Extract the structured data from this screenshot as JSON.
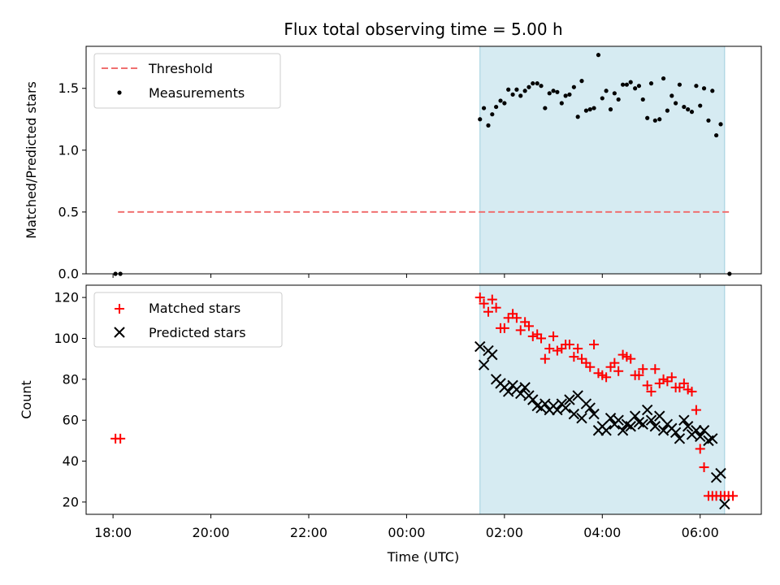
{
  "chart_data": [
    {
      "type": "scatter",
      "panel": "top",
      "title": "Flux total observing time = 5.00 h",
      "xlabel": "",
      "ylabel": "Matched/Predicted stars",
      "xlim": [
        -0.55,
        13.25
      ],
      "ylim": [
        0,
        1.84
      ],
      "yticks": [
        0.0,
        0.5,
        1.0,
        1.5
      ],
      "ytick_labels": [
        "0.0",
        "0.5",
        "1.0",
        "1.5"
      ],
      "shaded_region": {
        "x0": 7.5,
        "x1": 12.5,
        "color": "#add8e6",
        "opacity": 0.5
      },
      "legend": {
        "position": "upper-left",
        "entries": [
          "Threshold",
          "Measurements"
        ]
      },
      "series": [
        {
          "name": "Threshold",
          "kind": "dashed-line",
          "color": "#f07070",
          "x": [
            0.1,
            12.6
          ],
          "y": [
            0.5,
            0.5
          ]
        },
        {
          "name": "Measurements",
          "kind": "dot",
          "color": "#000000",
          "x": [
            0.05,
            0.15,
            7.5,
            7.58,
            7.67,
            7.75,
            7.83,
            7.92,
            8.0,
            8.08,
            8.17,
            8.25,
            8.33,
            8.42,
            8.5,
            8.58,
            8.67,
            8.75,
            8.83,
            8.92,
            9.0,
            9.08,
            9.17,
            9.25,
            9.33,
            9.42,
            9.5,
            9.58,
            9.67,
            9.75,
            9.83,
            9.92,
            10.0,
            10.08,
            10.17,
            10.25,
            10.33,
            10.42,
            10.5,
            10.58,
            10.67,
            10.75,
            10.83,
            10.92,
            11.0,
            11.08,
            11.17,
            11.25,
            11.33,
            11.42,
            11.5,
            11.58,
            11.67,
            11.75,
            11.83,
            11.92,
            12.0,
            12.08,
            12.17,
            12.25,
            12.33,
            12.42,
            12.6
          ],
          "y": [
            0.0,
            0.0,
            1.25,
            1.34,
            1.2,
            1.29,
            1.35,
            1.4,
            1.38,
            1.49,
            1.45,
            1.49,
            1.44,
            1.48,
            1.51,
            1.54,
            1.54,
            1.52,
            1.34,
            1.46,
            1.48,
            1.47,
            1.38,
            1.44,
            1.45,
            1.51,
            1.27,
            1.56,
            1.32,
            1.33,
            1.34,
            1.77,
            1.42,
            1.48,
            1.33,
            1.46,
            1.41,
            1.53,
            1.53,
            1.55,
            1.5,
            1.52,
            1.41,
            1.26,
            1.54,
            1.24,
            1.25,
            1.58,
            1.32,
            1.44,
            1.38,
            1.53,
            1.35,
            1.33,
            1.31,
            1.52,
            1.36,
            1.5,
            1.24,
            1.48,
            1.12,
            1.21,
            0.0
          ]
        }
      ]
    },
    {
      "type": "scatter",
      "panel": "bottom",
      "title": "",
      "xlabel": "Time (UTC)",
      "ylabel": "Count",
      "xlim": [
        -0.55,
        13.25
      ],
      "ylim": [
        14,
        126
      ],
      "yticks": [
        20,
        40,
        60,
        80,
        100,
        120
      ],
      "ytick_labels": [
        "20",
        "40",
        "60",
        "80",
        "100",
        "120"
      ],
      "xticks": [
        0,
        2,
        4,
        6,
        8,
        10,
        12
      ],
      "xtick_labels": [
        "18:00",
        "20:00",
        "22:00",
        "00:00",
        "02:00",
        "04:00",
        "06:00"
      ],
      "shaded_region": {
        "x0": 7.5,
        "x1": 12.5,
        "color": "#add8e6",
        "opacity": 0.5
      },
      "legend": {
        "position": "upper-left",
        "entries": [
          "Matched stars",
          "Predicted stars"
        ]
      },
      "series": [
        {
          "name": "Matched stars",
          "kind": "plus",
          "color": "#ff0000",
          "x": [
            0.05,
            0.15,
            7.5,
            7.58,
            7.67,
            7.75,
            7.83,
            7.92,
            8.0,
            8.08,
            8.17,
            8.25,
            8.33,
            8.42,
            8.5,
            8.58,
            8.67,
            8.75,
            8.83,
            8.92,
            9.0,
            9.08,
            9.17,
            9.25,
            9.33,
            9.42,
            9.5,
            9.58,
            9.67,
            9.75,
            9.83,
            9.92,
            10.0,
            10.08,
            10.17,
            10.25,
            10.33,
            10.42,
            10.5,
            10.58,
            10.67,
            10.75,
            10.83,
            10.92,
            11.0,
            11.08,
            11.17,
            11.25,
            11.33,
            11.42,
            11.5,
            11.58,
            11.67,
            11.75,
            11.83,
            11.92,
            12.0,
            12.08,
            12.17,
            12.25,
            12.33,
            12.42,
            12.5,
            12.58,
            12.67
          ],
          "y": [
            51,
            51,
            120,
            117,
            113,
            119,
            115,
            105,
            105,
            110,
            112,
            110,
            104,
            108,
            106,
            101,
            102,
            100,
            90,
            95,
            101,
            94,
            95,
            97,
            97,
            91,
            95,
            90,
            88,
            86,
            97,
            83,
            82,
            81,
            86,
            88,
            84,
            92,
            91,
            90,
            82,
            82,
            85,
            77,
            74,
            85,
            78,
            80,
            79,
            81,
            76,
            76,
            78,
            75,
            74,
            65,
            46,
            37,
            23,
            23,
            23,
            23,
            23,
            23,
            23
          ]
        },
        {
          "name": "Predicted stars",
          "kind": "x",
          "color": "#000000",
          "x": [
            7.5,
            7.58,
            7.67,
            7.75,
            7.83,
            7.92,
            8.0,
            8.08,
            8.17,
            8.25,
            8.33,
            8.42,
            8.5,
            8.58,
            8.67,
            8.75,
            8.83,
            8.92,
            9.0,
            9.08,
            9.17,
            9.25,
            9.33,
            9.42,
            9.5,
            9.58,
            9.67,
            9.75,
            9.83,
            9.92,
            10.0,
            10.08,
            10.17,
            10.25,
            10.33,
            10.42,
            10.5,
            10.58,
            10.67,
            10.75,
            10.83,
            10.92,
            11.0,
            11.08,
            11.17,
            11.25,
            11.33,
            11.42,
            11.5,
            11.58,
            11.67,
            11.75,
            11.83,
            11.92,
            12.0,
            12.08,
            12.17,
            12.25,
            12.33,
            12.42,
            12.5
          ],
          "y": [
            96,
            87,
            94,
            92,
            80,
            78,
            76,
            74,
            77,
            75,
            73,
            76,
            72,
            70,
            67,
            66,
            68,
            65,
            67,
            65,
            68,
            66,
            70,
            63,
            72,
            61,
            68,
            66,
            63,
            55,
            57,
            55,
            61,
            58,
            60,
            55,
            58,
            57,
            62,
            59,
            58,
            65,
            60,
            57,
            62,
            55,
            58,
            56,
            54,
            51,
            60,
            57,
            53,
            55,
            52,
            55,
            50,
            51,
            32,
            34,
            19
          ]
        }
      ]
    }
  ]
}
